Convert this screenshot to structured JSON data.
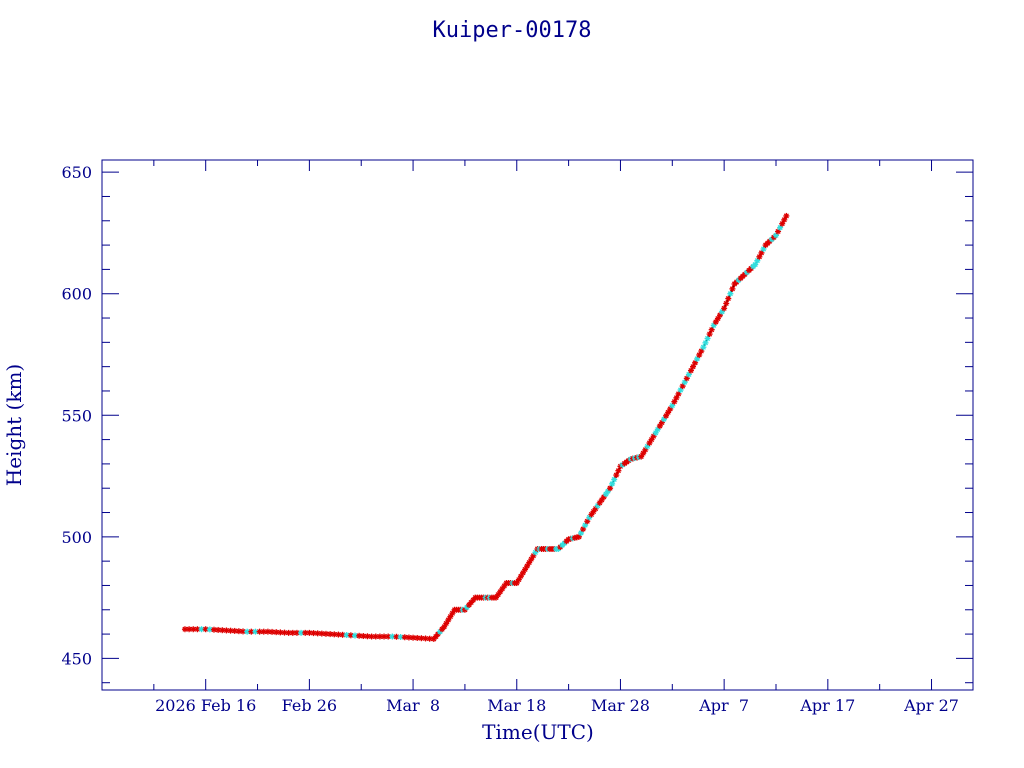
{
  "chart_data": {
    "type": "scatter",
    "title": "Kuiper-00178",
    "xlabel": "Time(UTC)",
    "ylabel": "Height (km)",
    "x_tick_labels": [
      "2026 Feb 16",
      "Feb 26",
      "Mar  8",
      "Mar 18",
      "Mar 28",
      "Apr  7",
      "Apr 17",
      "Apr 27"
    ],
    "x_tick_dates": [
      "2026-02-16",
      "2026-02-26",
      "2026-03-08",
      "2026-03-18",
      "2026-03-28",
      "2026-04-07",
      "2026-04-17",
      "2026-04-27"
    ],
    "y_tick_values": [
      450,
      500,
      550,
      600,
      650
    ],
    "xlim": [
      "2026-02-06",
      "2026-05-01"
    ],
    "ylim": [
      437,
      655
    ],
    "grid": false,
    "colors": {
      "axis": "#00008b",
      "line": "#000000",
      "marker_primary": "#dd0000",
      "marker_secondary": "#33dddd"
    },
    "series": [
      {
        "x": [
          "2026-02-14",
          "2026-02-16",
          "2026-02-18",
          "2026-02-20",
          "2026-02-22",
          "2026-02-24",
          "2026-02-26",
          "2026-02-28",
          "2026-03-02",
          "2026-03-04",
          "2026-03-06",
          "2026-03-08",
          "2026-03-10",
          "2026-03-11",
          "2026-03-12",
          "2026-03-13",
          "2026-03-14",
          "2026-03-15",
          "2026-03-16",
          "2026-03-17",
          "2026-03-18",
          "2026-03-19",
          "2026-03-20",
          "2026-03-21",
          "2026-03-22",
          "2026-03-23",
          "2026-03-24",
          "2026-03-25",
          "2026-03-26",
          "2026-03-27",
          "2026-03-28",
          "2026-03-29",
          "2026-03-30",
          "2026-03-31",
          "2026-04-01",
          "2026-04-02",
          "2026-04-03",
          "2026-04-04",
          "2026-04-05",
          "2026-04-06",
          "2026-04-07",
          "2026-04-08",
          "2026-04-09",
          "2026-04-10",
          "2026-04-11",
          "2026-04-12",
          "2026-04-13"
        ],
        "y": [
          462,
          462,
          461.5,
          461,
          461,
          460.5,
          460.5,
          460,
          459.5,
          459,
          459,
          458.5,
          458,
          463,
          470,
          470,
          475,
          475,
          475,
          481,
          481,
          488,
          495,
          495,
          495,
          499,
          500,
          508,
          514,
          520,
          529,
          532,
          533,
          540,
          547,
          554,
          562,
          570,
          578,
          587,
          594,
          604,
          608,
          612,
          620,
          624,
          632
        ]
      }
    ]
  }
}
